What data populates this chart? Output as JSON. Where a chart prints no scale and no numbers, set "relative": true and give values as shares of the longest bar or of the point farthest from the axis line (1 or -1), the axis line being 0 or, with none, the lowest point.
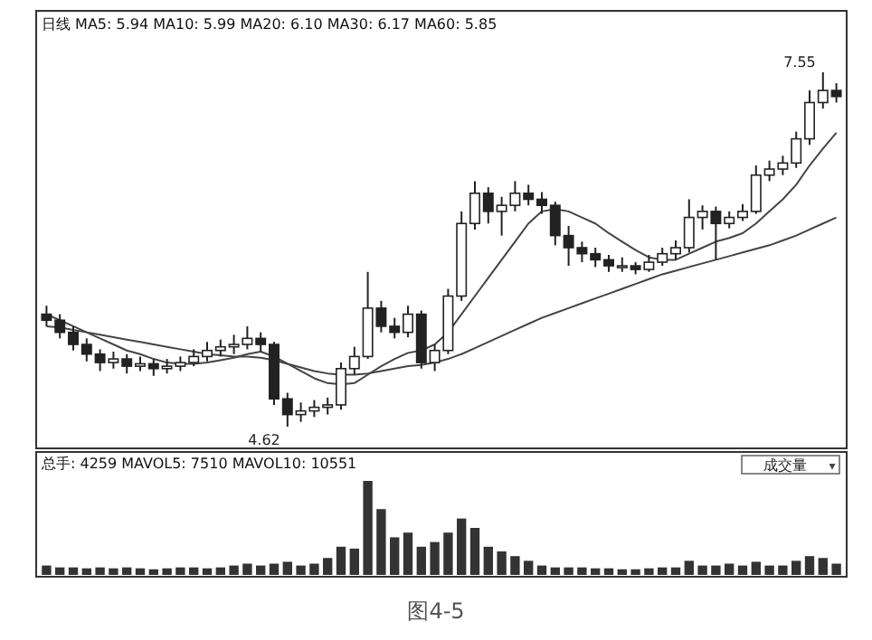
{
  "chart_data": [
    {
      "type": "candlestick",
      "title": "日线 MA5: 5.94 MA10: 5.99 MA20: 6.10 MA30: 6.17 MA60: 5.85",
      "categories": [
        null,
        null,
        null,
        null,
        null,
        null,
        null,
        null,
        null,
        null,
        null,
        null,
        null,
        null,
        null,
        null,
        null,
        null,
        null,
        null,
        null,
        null,
        null,
        null,
        null,
        null,
        null,
        null,
        null,
        null,
        null,
        null,
        null,
        null,
        null,
        null,
        null,
        null,
        null,
        null,
        null,
        null,
        null,
        null,
        null,
        null,
        null,
        null,
        null,
        null,
        null,
        null,
        null,
        null,
        null,
        null,
        null,
        null,
        null,
        null
      ],
      "ohlc": [
        [
          5.55,
          5.62,
          5.45,
          5.5
        ],
        [
          5.5,
          5.55,
          5.35,
          5.4
        ],
        [
          5.4,
          5.45,
          5.25,
          5.3
        ],
        [
          5.3,
          5.35,
          5.16,
          5.22
        ],
        [
          5.22,
          5.26,
          5.08,
          5.15
        ],
        [
          5.15,
          5.24,
          5.1,
          5.18
        ],
        [
          5.18,
          5.22,
          5.06,
          5.12
        ],
        [
          5.12,
          5.2,
          5.08,
          5.14
        ],
        [
          5.14,
          5.18,
          5.04,
          5.1
        ],
        [
          5.1,
          5.18,
          5.06,
          5.12
        ],
        [
          5.12,
          5.2,
          5.08,
          5.15
        ],
        [
          5.15,
          5.26,
          5.12,
          5.2
        ],
        [
          5.2,
          5.32,
          5.16,
          5.25
        ],
        [
          5.25,
          5.34,
          5.2,
          5.28
        ],
        [
          5.28,
          5.38,
          5.22,
          5.3
        ],
        [
          5.3,
          5.45,
          5.26,
          5.35
        ],
        [
          5.35,
          5.4,
          5.24,
          5.3
        ],
        [
          5.3,
          5.32,
          4.8,
          4.85
        ],
        [
          4.85,
          4.9,
          4.62,
          4.72
        ],
        [
          4.72,
          4.82,
          4.66,
          4.75
        ],
        [
          4.75,
          4.84,
          4.7,
          4.78
        ],
        [
          4.78,
          4.86,
          4.72,
          4.8
        ],
        [
          4.8,
          5.15,
          4.76,
          5.1
        ],
        [
          5.1,
          5.28,
          5.05,
          5.2
        ],
        [
          5.2,
          5.9,
          5.18,
          5.6
        ],
        [
          5.6,
          5.66,
          5.4,
          5.45
        ],
        [
          5.45,
          5.52,
          5.35,
          5.4
        ],
        [
          5.4,
          5.62,
          5.36,
          5.55
        ],
        [
          5.55,
          5.58,
          5.1,
          5.15
        ],
        [
          5.15,
          5.3,
          5.08,
          5.25
        ],
        [
          5.25,
          5.76,
          5.22,
          5.7
        ],
        [
          5.7,
          6.4,
          5.66,
          6.3
        ],
        [
          6.3,
          6.65,
          6.25,
          6.55
        ],
        [
          6.55,
          6.6,
          6.3,
          6.4
        ],
        [
          6.4,
          6.52,
          6.2,
          6.45
        ],
        [
          6.45,
          6.65,
          6.4,
          6.55
        ],
        [
          6.55,
          6.62,
          6.45,
          6.5
        ],
        [
          6.5,
          6.56,
          6.38,
          6.45
        ],
        [
          6.45,
          6.48,
          6.12,
          6.2
        ],
        [
          6.2,
          6.28,
          5.95,
          6.1
        ],
        [
          6.1,
          6.15,
          5.98,
          6.05
        ],
        [
          6.05,
          6.1,
          5.94,
          6.0
        ],
        [
          6.0,
          6.04,
          5.9,
          5.95
        ],
        [
          5.95,
          6.02,
          5.9,
          5.95
        ],
        [
          5.95,
          5.98,
          5.88,
          5.92
        ],
        [
          5.92,
          6.04,
          5.9,
          5.98
        ],
        [
          5.98,
          6.1,
          5.95,
          6.05
        ],
        [
          6.05,
          6.16,
          6.0,
          6.1
        ],
        [
          6.1,
          6.5,
          6.06,
          6.35
        ],
        [
          6.35,
          6.45,
          6.25,
          6.4
        ],
        [
          6.4,
          6.44,
          6.0,
          6.3
        ],
        [
          6.3,
          6.4,
          6.26,
          6.35
        ],
        [
          6.35,
          6.46,
          6.32,
          6.4
        ],
        [
          6.4,
          6.78,
          6.38,
          6.7
        ],
        [
          6.7,
          6.82,
          6.65,
          6.75
        ],
        [
          6.75,
          6.86,
          6.7,
          6.8
        ],
        [
          6.8,
          7.06,
          6.76,
          7.0
        ],
        [
          7.0,
          7.4,
          6.95,
          7.3
        ],
        [
          7.3,
          7.55,
          7.25,
          7.4
        ],
        [
          7.4,
          7.46,
          7.3,
          7.35
        ]
      ],
      "series": [
        {
          "type": "line",
          "color": "#444444",
          "values": [
            5.55,
            5.5,
            5.45,
            5.4,
            5.35,
            5.3,
            5.25,
            5.22,
            5.18,
            5.15,
            5.14,
            5.14,
            5.15,
            5.17,
            5.19,
            5.22,
            5.24,
            5.2,
            5.14,
            5.08,
            5.02,
            4.98,
            4.97,
            4.98,
            5.05,
            5.12,
            5.18,
            5.23,
            5.25,
            5.3,
            5.4,
            5.55,
            5.7,
            5.85,
            6.0,
            6.15,
            6.3,
            6.4,
            6.42,
            6.4,
            6.35,
            6.3,
            6.22,
            6.15,
            6.08,
            6.02,
            6.0,
            6.0,
            6.05,
            6.1,
            6.15,
            6.18,
            6.22,
            6.3,
            6.4,
            6.5,
            6.62,
            6.78,
            6.92,
            7.05
          ]
        },
        {
          "type": "line",
          "color": "#444444",
          "values": [
            5.45,
            5.44,
            5.42,
            5.4,
            5.38,
            5.36,
            5.34,
            5.32,
            5.3,
            5.28,
            5.26,
            5.24,
            5.22,
            5.21,
            5.2,
            5.2,
            5.19,
            5.17,
            5.14,
            5.11,
            5.08,
            5.06,
            5.05,
            5.05,
            5.06,
            5.08,
            5.1,
            5.12,
            5.13,
            5.15,
            5.18,
            5.22,
            5.27,
            5.32,
            5.37,
            5.42,
            5.47,
            5.52,
            5.56,
            5.6,
            5.64,
            5.68,
            5.72,
            5.76,
            5.8,
            5.84,
            5.88,
            5.91,
            5.94,
            5.97,
            6.0,
            6.03,
            6.06,
            6.09,
            6.12,
            6.16,
            6.2,
            6.25,
            6.3,
            6.35
          ]
        }
      ],
      "annotations": [
        "7.55",
        "4.62"
      ]
    },
    {
      "type": "bar",
      "relative": true,
      "title": "总手: 4259 MAVOL5: 7510 MAVOL10: 10551",
      "color": "#333333",
      "categories": [
        null,
        null,
        null,
        null,
        null,
        null,
        null,
        null,
        null,
        null,
        null,
        null,
        null,
        null,
        null,
        null,
        null,
        null,
        null,
        null,
        null,
        null,
        null,
        null,
        null,
        null,
        null,
        null,
        null,
        null,
        null,
        null,
        null,
        null,
        null,
        null,
        null,
        null,
        null,
        null,
        null,
        null,
        null,
        null,
        null,
        null,
        null,
        null,
        null,
        null,
        null,
        null,
        null,
        null,
        null,
        null,
        null,
        null,
        null,
        null
      ],
      "values": [
        0.1,
        0.08,
        0.08,
        0.07,
        0.08,
        0.07,
        0.08,
        0.07,
        0.06,
        0.07,
        0.08,
        0.08,
        0.07,
        0.08,
        0.1,
        0.12,
        0.1,
        0.12,
        0.14,
        0.1,
        0.12,
        0.18,
        0.3,
        0.28,
        1.0,
        0.7,
        0.4,
        0.45,
        0.3,
        0.35,
        0.45,
        0.6,
        0.5,
        0.3,
        0.25,
        0.2,
        0.15,
        0.1,
        0.08,
        0.08,
        0.08,
        0.07,
        0.07,
        0.06,
        0.06,
        0.07,
        0.08,
        0.08,
        0.15,
        0.1,
        0.1,
        0.12,
        0.1,
        0.14,
        0.1,
        0.1,
        0.15,
        0.2,
        0.18,
        0.12
      ],
      "annotations": [
        "成交量",
        "▾",
        "图4-5"
      ]
    }
  ]
}
